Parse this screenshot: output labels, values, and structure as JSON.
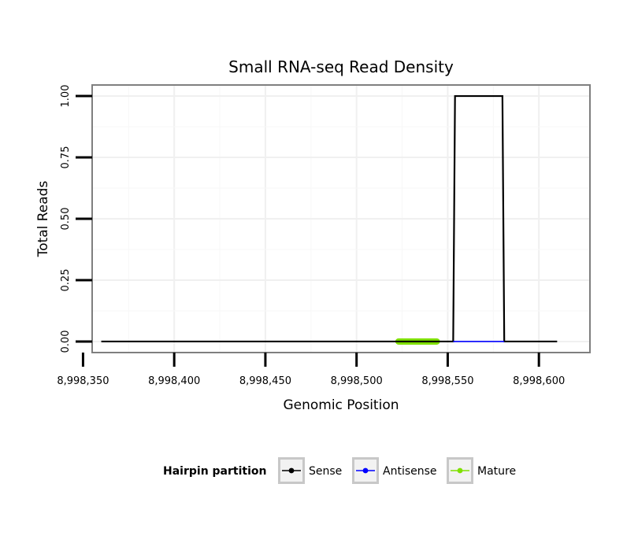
{
  "chart_data": {
    "type": "line",
    "title": "Small RNA-seq Read Density",
    "xlabel": "Genomic Position",
    "ylabel": "Total Reads",
    "xlim": [
      8998355,
      8998628
    ],
    "ylim": [
      -0.045,
      1.045
    ],
    "x_ticks": [
      8998350,
      8998400,
      8998450,
      8998500,
      8998550,
      8998600
    ],
    "x_tick_labels": [
      "8,998,350",
      "8,998,400",
      "8,998,450",
      "8,998,500",
      "8,998,550",
      "8,998,600"
    ],
    "y_ticks": [
      0,
      0.25,
      0.5,
      0.75,
      1.0
    ],
    "y_tick_labels": [
      "0.00",
      "0.25",
      "0.50",
      "0.75",
      "1.00"
    ],
    "grid": true,
    "legend_position": "bottom",
    "legend": {
      "title": "Hairpin partition",
      "entries": [
        {
          "name": "Sense",
          "color": "#000000"
        },
        {
          "name": "Antisense",
          "color": "#0000ff"
        },
        {
          "name": "Mature",
          "color": "#7fe000"
        }
      ]
    },
    "series": [
      {
        "name": "Sense",
        "color": "#000000",
        "x": [
          8998360,
          8998553,
          8998554,
          8998580,
          8998581,
          8998610
        ],
        "y": [
          0,
          0,
          1,
          1,
          0,
          0
        ]
      },
      {
        "name": "Antisense",
        "color": "#0000ff",
        "x": [
          8998553,
          8998581
        ],
        "y": [
          0,
          0
        ]
      },
      {
        "name": "Mature",
        "color": "#7fe000",
        "x": [
          8998523,
          8998544
        ],
        "y": [
          0,
          0
        ]
      }
    ]
  }
}
